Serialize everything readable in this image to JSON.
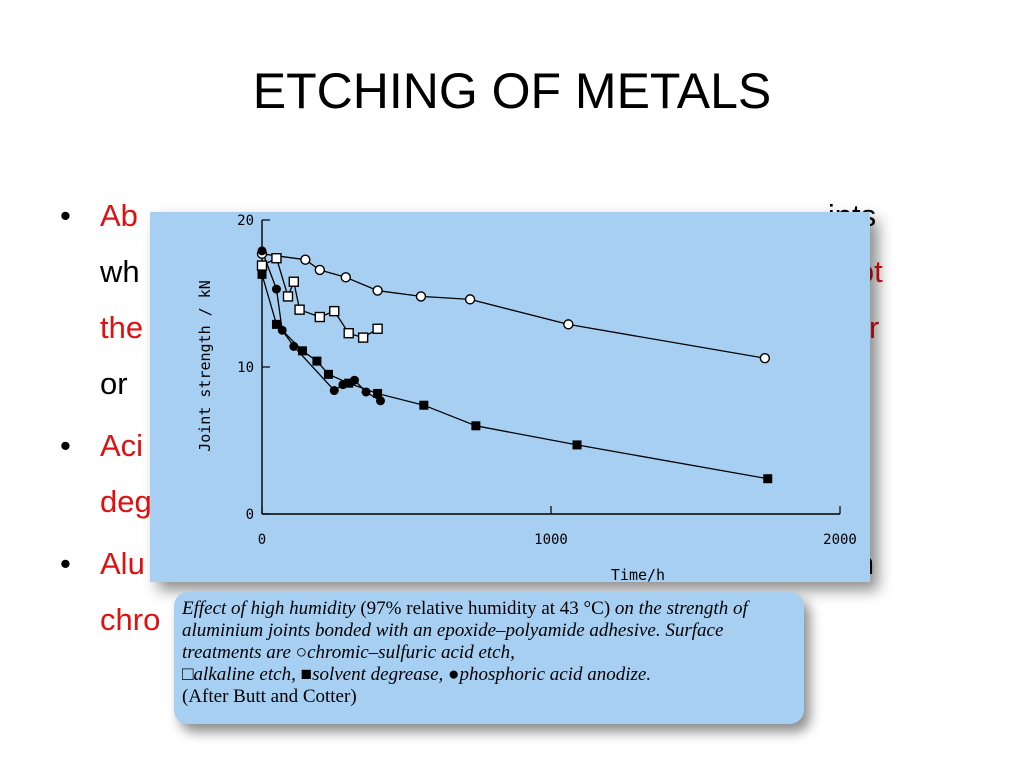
{
  "slide": {
    "title": "ETCHING OF METALS"
  },
  "bullets": [
    {
      "line1_red": "Ab",
      "line1_black": "ints",
      "line2_black": "wh",
      "line2_red": "not",
      "line3_red_a": "the",
      "line3_red_b": "ter",
      "line4_black": "or"
    },
    {
      "line1_red": "Aci",
      "line2_red": "deg"
    },
    {
      "line1_red": "Alu",
      "line1_black": "n",
      "line2_red": "chro"
    }
  ],
  "chart_data": {
    "type": "scatter",
    "title": "",
    "xlabel": "Time/h",
    "ylabel": "Joint  strength / kN",
    "xlim": [
      0,
      2000
    ],
    "ylim": [
      0,
      20
    ],
    "x_ticks": [
      "0",
      "1000",
      "2000"
    ],
    "y_ticks": [
      "0",
      "10",
      "20"
    ],
    "series": [
      {
        "marker": "open-circle",
        "points": [
          [
            0,
            17.7
          ],
          [
            150,
            17.3
          ],
          [
            200,
            16.6
          ],
          [
            290,
            16.1
          ],
          [
            400,
            15.2
          ],
          [
            550,
            14.8
          ],
          [
            720,
            14.6
          ],
          [
            1060,
            12.9
          ],
          [
            1740,
            10.6
          ]
        ]
      },
      {
        "marker": "open-square",
        "points": [
          [
            0,
            16.9
          ],
          [
            50,
            17.4
          ],
          [
            90,
            14.8
          ],
          [
            110,
            15.8
          ],
          [
            130,
            13.9
          ],
          [
            200,
            13.4
          ],
          [
            250,
            13.8
          ],
          [
            300,
            12.3
          ],
          [
            350,
            12.0
          ],
          [
            400,
            12.6
          ]
        ]
      },
      {
        "marker": "filled-square",
        "points": [
          [
            0,
            16.3
          ],
          [
            50,
            12.9
          ],
          [
            140,
            11.1
          ],
          [
            190,
            10.4
          ],
          [
            230,
            9.5
          ],
          [
            300,
            8.9
          ],
          [
            400,
            8.2
          ],
          [
            560,
            7.4
          ],
          [
            740,
            6.0
          ],
          [
            1090,
            4.7
          ],
          [
            1750,
            2.4
          ]
        ]
      },
      {
        "marker": "filled-circle",
        "points": [
          [
            0,
            17.9
          ],
          [
            50,
            15.3
          ],
          [
            70,
            12.5
          ],
          [
            110,
            11.4
          ],
          [
            250,
            8.4
          ],
          [
            280,
            8.8
          ],
          [
            320,
            9.1
          ],
          [
            360,
            8.3
          ],
          [
            410,
            7.7
          ]
        ]
      }
    ]
  },
  "caption": {
    "part1": "Effect of high humidity ",
    "part2": "(97% relative humidity at 43 °C)",
    "part3": " on the strength of aluminium joints bonded with an epoxide–polyamide adhesive. Surface treatments are ",
    "sym_open_circle": "○",
    "t1": "chromic–sulfuric acid etch,",
    "sym_open_square": "□",
    "t2": "alkaline etch,",
    "sym_filled_square": "■",
    "t3": "solvent degrease,",
    "sym_filled_circle": "●",
    "t4": "phosphoric acid anodize.",
    "t5": "(After Butt and Cotter)"
  }
}
